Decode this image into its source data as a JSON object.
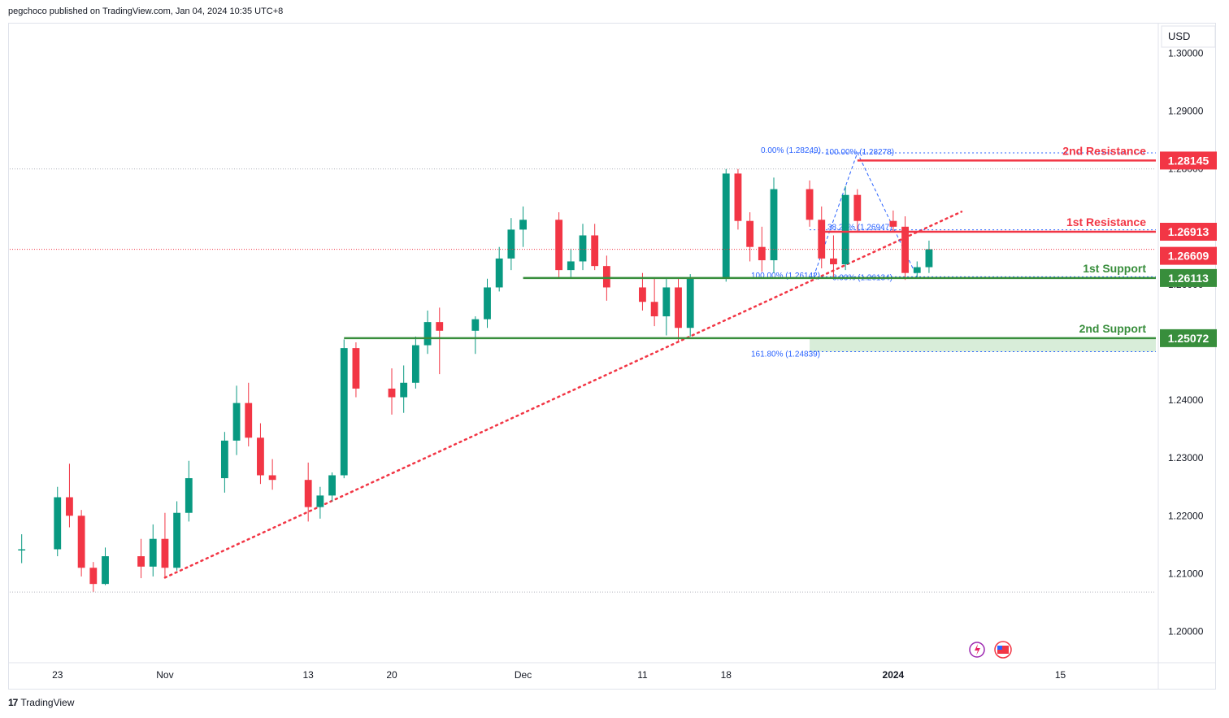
{
  "header": {
    "text": "pegchoco published on TradingView.com, Jan 04, 2024 10:35 UTC+8"
  },
  "footer": {
    "brand": "TradingView",
    "logo_glyph": "17"
  },
  "colors": {
    "up": "#089981",
    "down": "#f23645",
    "resistance": "#f23645",
    "support": "#388e3c",
    "fib": "#2962ff",
    "trend": "#f23645",
    "zone": "#c8e6c9"
  },
  "chart_data": {
    "type": "candlestick",
    "currency": "USD",
    "ylim": [
      1.195,
      1.305
    ],
    "y_ticks": [
      "1.30000",
      "1.29000",
      "1.28000",
      "1.27000",
      "1.26000",
      "1.25000",
      "1.24000",
      "1.23000",
      "1.22000",
      "1.21000",
      "1.20000"
    ],
    "x_ticks": [
      {
        "label": "23",
        "date": "2023-10-23"
      },
      {
        "label": "Nov",
        "date": "2023-11-01"
      },
      {
        "label": "13",
        "date": "2023-11-13"
      },
      {
        "label": "20",
        "date": "2023-11-20"
      },
      {
        "label": "Dec",
        "date": "2023-12-01"
      },
      {
        "label": "11",
        "date": "2023-12-11"
      },
      {
        "label": "18",
        "date": "2023-12-18"
      },
      {
        "label": "2024",
        "date": "2024-01-01",
        "bold": true
      },
      {
        "label": "15",
        "date": "2024-01-15"
      }
    ],
    "levels": [
      {
        "name": "2nd Resistance",
        "price": 1.28145,
        "label": "1.28145",
        "kind": "resistance"
      },
      {
        "name": "1st Resistance",
        "price": 1.26913,
        "label": "1.26913",
        "kind": "resistance"
      },
      {
        "name": "1st Support",
        "price": 1.26113,
        "label": "1.26113",
        "kind": "support"
      },
      {
        "name": "2nd Support",
        "price": 1.25072,
        "label": "1.25072",
        "kind": "support"
      }
    ],
    "last_price": {
      "price": 1.26609,
      "label": "1.26609"
    },
    "fib_labels": [
      {
        "text": "0.00% (1.28249)",
        "price": 1.28249
      },
      {
        "text": "100.00% (1.28278)",
        "price": 1.28278
      },
      {
        "text": "38.20% (1.26947)",
        "price": 1.26947
      },
      {
        "text": "100.00% (1.26142)",
        "price": 1.26142
      },
      {
        "text": "0.00% (1.26134)",
        "price": 1.26134
      },
      {
        "text": "161.80% (1.24839)",
        "price": 1.24839
      }
    ],
    "trendline": {
      "from": {
        "date": "2023-11-01",
        "price": 1.2093
      },
      "to": {
        "date": "2024-01-04",
        "price": 1.2708
      }
    },
    "candles": [
      [
        "2023-10-20",
        1.214,
        1.2168,
        1.2118,
        1.2142
      ],
      [
        "2023-10-23",
        1.2142,
        1.225,
        1.213,
        1.2232
      ],
      [
        "2023-10-24",
        1.2232,
        1.229,
        1.218,
        1.22
      ],
      [
        "2023-10-25",
        1.22,
        1.221,
        1.2095,
        1.211
      ],
      [
        "2023-10-26",
        1.211,
        1.212,
        1.2068,
        1.2082
      ],
      [
        "2023-10-27",
        1.2082,
        1.2145,
        1.208,
        1.213
      ],
      [
        "2023-10-30",
        1.213,
        1.216,
        1.2092,
        1.2112
      ],
      [
        "2023-10-31",
        1.2112,
        1.2185,
        1.2095,
        1.216
      ],
      [
        "2023-11-01",
        1.216,
        1.2205,
        1.2094,
        1.211
      ],
      [
        "2023-11-02",
        1.211,
        1.2225,
        1.2105,
        1.2205
      ],
      [
        "2023-11-03",
        1.2205,
        1.2295,
        1.219,
        1.2265
      ],
      [
        "2023-11-06",
        1.2265,
        1.2345,
        1.224,
        1.233
      ],
      [
        "2023-11-07",
        1.233,
        1.2425,
        1.2305,
        1.2395
      ],
      [
        "2023-11-08",
        1.2395,
        1.243,
        1.232,
        1.2335
      ],
      [
        "2023-11-09",
        1.2335,
        1.236,
        1.2255,
        1.227
      ],
      [
        "2023-11-10",
        1.227,
        1.2298,
        1.2245,
        1.2262
      ],
      [
        "2023-11-13",
        1.2262,
        1.2292,
        1.219,
        1.2215
      ],
      [
        "2023-11-14",
        1.2215,
        1.225,
        1.2195,
        1.2235
      ],
      [
        "2023-11-15",
        1.2235,
        1.2275,
        1.2225,
        1.227
      ],
      [
        "2023-11-16",
        1.227,
        1.2505,
        1.2265,
        1.249
      ],
      [
        "2023-11-17",
        1.249,
        1.25,
        1.2405,
        1.242
      ],
      [
        "2023-11-20",
        1.242,
        1.2455,
        1.2375,
        1.2405
      ],
      [
        "2023-11-21",
        1.2405,
        1.246,
        1.2378,
        1.243
      ],
      [
        "2023-11-22",
        1.243,
        1.251,
        1.242,
        1.2495
      ],
      [
        "2023-11-23",
        1.2495,
        1.2555,
        1.248,
        1.2535
      ],
      [
        "2023-11-24",
        1.2535,
        1.256,
        1.2445,
        1.252
      ],
      [
        "2023-11-27",
        1.252,
        1.2545,
        1.248,
        1.254
      ],
      [
        "2023-11-28",
        1.254,
        1.261,
        1.2525,
        1.2595
      ],
      [
        "2023-11-29",
        1.2595,
        1.2665,
        1.2588,
        1.2645
      ],
      [
        "2023-11-30",
        1.2645,
        1.2715,
        1.2625,
        1.2695
      ],
      [
        "2023-12-01",
        1.2695,
        1.2735,
        1.2665,
        1.2712
      ],
      [
        "2023-12-04",
        1.2712,
        1.2725,
        1.2612,
        1.2625
      ],
      [
        "2023-12-05",
        1.2625,
        1.2662,
        1.2612,
        1.264
      ],
      [
        "2023-12-06",
        1.264,
        1.2705,
        1.2625,
        1.2685
      ],
      [
        "2023-12-07",
        1.2685,
        1.2705,
        1.2625,
        1.2632
      ],
      [
        "2023-12-08",
        1.2632,
        1.265,
        1.2572,
        1.2595
      ],
      [
        "2023-12-11",
        1.2595,
        1.262,
        1.2555,
        1.257
      ],
      [
        "2023-12-12",
        1.257,
        1.2612,
        1.2528,
        1.2545
      ],
      [
        "2023-12-13",
        1.2545,
        1.2612,
        1.2512,
        1.2595
      ],
      [
        "2023-12-14",
        1.2595,
        1.2612,
        1.2502,
        1.2525
      ],
      [
        "2023-12-15",
        1.2525,
        1.2618,
        1.251,
        1.2612
      ],
      [
        "2023-12-18",
        1.2612,
        1.28,
        1.2605,
        1.2792
      ],
      [
        "2023-12-19",
        1.2792,
        1.28,
        1.2695,
        1.271
      ],
      [
        "2023-12-20",
        1.271,
        1.2725,
        1.264,
        1.2665
      ],
      [
        "2023-12-21",
        1.2665,
        1.27,
        1.2622,
        1.2642
      ],
      [
        "2023-12-22",
        1.2642,
        1.2785,
        1.262,
        1.2765
      ],
      [
        "2023-12-25",
        1.2765,
        1.278,
        1.27,
        1.2712
      ],
      [
        "2023-12-26",
        1.2712,
        1.2735,
        1.2628,
        1.2645
      ],
      [
        "2023-12-27",
        1.2645,
        1.2685,
        1.2612,
        1.2635
      ],
      [
        "2023-12-28",
        1.2635,
        1.277,
        1.2625,
        1.2755
      ],
      [
        "2023-12-29",
        1.2755,
        1.2765,
        1.269,
        1.271
      ],
      [
        "2024-01-01",
        1.271,
        1.2728,
        1.269,
        1.27
      ],
      [
        "2024-01-02",
        1.27,
        1.2718,
        1.2608,
        1.262
      ],
      [
        "2024-01-03",
        1.262,
        1.264,
        1.2612,
        1.263
      ],
      [
        "2024-01-04",
        1.263,
        1.2676,
        1.262,
        1.2661
      ]
    ]
  }
}
